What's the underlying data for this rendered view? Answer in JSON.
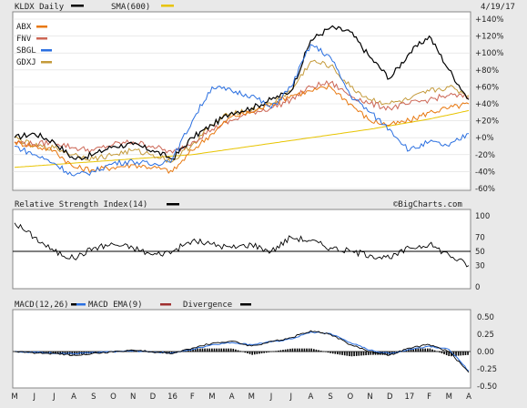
{
  "chart_data": {
    "type": "line",
    "date": "4/19/17",
    "watermark": "©BigCharts.com",
    "x_labels": [
      "M",
      "J",
      "J",
      "A",
      "S",
      "O",
      "N",
      "D",
      "16",
      "F",
      "M",
      "A",
      "M",
      "J",
      "J",
      "A",
      "S",
      "O",
      "N",
      "D",
      "17",
      "F",
      "M",
      "A"
    ],
    "main": {
      "ticker_label": "KLDX Daily",
      "sma_label": "SMA(600)",
      "legend": [
        {
          "name": "ABX",
          "color": "#e8780f"
        },
        {
          "name": "FNV",
          "color": "#cc6655"
        },
        {
          "name": "SBGL",
          "color": "#2a6fe0"
        },
        {
          "name": "GDXJ",
          "color": "#c49a3a"
        }
      ],
      "ylim": [
        -60,
        140
      ],
      "y_ticks": [
        "+140%",
        "+120%",
        "+100%",
        "+80%",
        "+60%",
        "+40%",
        "+20%",
        "+0%",
        "-20%",
        "-40%",
        "-60%"
      ],
      "y_tick_values": [
        140,
        120,
        100,
        80,
        60,
        40,
        20,
        0,
        -20,
        -40,
        -60
      ],
      "series": [
        {
          "name": "KLDX",
          "color": "#000000",
          "anchors": [
            [
              0,
              0
            ],
            [
              1,
              5
            ],
            [
              2,
              -5
            ],
            [
              3,
              -25
            ],
            [
              4,
              -20
            ],
            [
              5,
              -10
            ],
            [
              6,
              -8
            ],
            [
              7,
              -15
            ],
            [
              8,
              -25
            ],
            [
              9,
              0
            ],
            [
              10,
              15
            ],
            [
              11,
              30
            ],
            [
              12,
              35
            ],
            [
              13,
              45
            ],
            [
              14,
              55
            ],
            [
              15,
              115
            ],
            [
              16,
              130
            ],
            [
              17,
              125
            ],
            [
              18,
              95
            ],
            [
              19,
              70
            ],
            [
              20,
              100
            ],
            [
              21,
              120
            ],
            [
              22,
              80
            ],
            [
              23,
              45
            ]
          ]
        },
        {
          "name": "ABX",
          "color": "#e8780f",
          "anchors": [
            [
              0,
              -5
            ],
            [
              1,
              -10
            ],
            [
              2,
              -15
            ],
            [
              3,
              -35
            ],
            [
              4,
              -38
            ],
            [
              5,
              -35
            ],
            [
              6,
              -32
            ],
            [
              7,
              -35
            ],
            [
              8,
              -40
            ],
            [
              9,
              -15
            ],
            [
              10,
              5
            ],
            [
              11,
              25
            ],
            [
              12,
              30
            ],
            [
              13,
              40
            ],
            [
              14,
              50
            ],
            [
              15,
              55
            ],
            [
              16,
              60
            ],
            [
              17,
              40
            ],
            [
              18,
              20
            ],
            [
              19,
              15
            ],
            [
              20,
              20
            ],
            [
              21,
              30
            ],
            [
              22,
              35
            ],
            [
              23,
              40
            ]
          ]
        },
        {
          "name": "FNV",
          "color": "#cc6655",
          "anchors": [
            [
              0,
              -5
            ],
            [
              1,
              -8
            ],
            [
              2,
              -5
            ],
            [
              3,
              -12
            ],
            [
              4,
              -15
            ],
            [
              5,
              -8
            ],
            [
              6,
              -5
            ],
            [
              7,
              -10
            ],
            [
              8,
              -18
            ],
            [
              9,
              -5
            ],
            [
              10,
              10
            ],
            [
              11,
              20
            ],
            [
              12,
              30
            ],
            [
              13,
              35
            ],
            [
              14,
              45
            ],
            [
              15,
              60
            ],
            [
              16,
              65
            ],
            [
              17,
              50
            ],
            [
              18,
              40
            ],
            [
              19,
              35
            ],
            [
              20,
              40
            ],
            [
              21,
              45
            ],
            [
              22,
              50
            ],
            [
              23,
              48
            ]
          ]
        },
        {
          "name": "SBGL",
          "color": "#2a6fe0",
          "anchors": [
            [
              0,
              -10
            ],
            [
              1,
              -20
            ],
            [
              2,
              -30
            ],
            [
              3,
              -45
            ],
            [
              4,
              -40
            ],
            [
              5,
              -30
            ],
            [
              6,
              -28
            ],
            [
              7,
              -32
            ],
            [
              8,
              -25
            ],
            [
              9,
              20
            ],
            [
              10,
              60
            ],
            [
              11,
              55
            ],
            [
              12,
              50
            ],
            [
              13,
              35
            ],
            [
              14,
              60
            ],
            [
              15,
              110
            ],
            [
              16,
              95
            ],
            [
              17,
              50
            ],
            [
              18,
              30
            ],
            [
              19,
              10
            ],
            [
              20,
              -15
            ],
            [
              21,
              -5
            ],
            [
              22,
              -10
            ],
            [
              23,
              5
            ]
          ]
        },
        {
          "name": "GDXJ",
          "color": "#c49a3a",
          "anchors": [
            [
              0,
              0
            ],
            [
              1,
              -10
            ],
            [
              2,
              -12
            ],
            [
              3,
              -20
            ],
            [
              4,
              -25
            ],
            [
              5,
              -20
            ],
            [
              6,
              -15
            ],
            [
              7,
              -20
            ],
            [
              8,
              -28
            ],
            [
              9,
              -8
            ],
            [
              10,
              15
            ],
            [
              11,
              30
            ],
            [
              12,
              32
            ],
            [
              13,
              40
            ],
            [
              14,
              55
            ],
            [
              15,
              90
            ],
            [
              16,
              85
            ],
            [
              17,
              60
            ],
            [
              18,
              45
            ],
            [
              19,
              40
            ],
            [
              20,
              45
            ],
            [
              21,
              55
            ],
            [
              22,
              60
            ],
            [
              23,
              50
            ]
          ]
        },
        {
          "name": "SMA(600)",
          "color": "#e8c400",
          "anchors": [
            [
              0,
              -35
            ],
            [
              3,
              -30
            ],
            [
              6,
              -25
            ],
            [
              9,
              -20
            ],
            [
              12,
              -10
            ],
            [
              15,
              0
            ],
            [
              18,
              10
            ],
            [
              21,
              22
            ],
            [
              23,
              32
            ]
          ]
        }
      ]
    },
    "rsi": {
      "label": "Relative Strength Index(14)",
      "ylim": [
        0,
        100
      ],
      "y_ticks": [
        "100",
        "70",
        "50",
        "30",
        "0"
      ],
      "y_tick_values": [
        100,
        70,
        50,
        30,
        0
      ],
      "reference": 50,
      "anchors": [
        [
          0,
          90
        ],
        [
          1,
          70
        ],
        [
          2,
          50
        ],
        [
          3,
          40
        ],
        [
          4,
          55
        ],
        [
          5,
          60
        ],
        [
          6,
          55
        ],
        [
          7,
          45
        ],
        [
          8,
          50
        ],
        [
          9,
          65
        ],
        [
          10,
          60
        ],
        [
          11,
          55
        ],
        [
          12,
          60
        ],
        [
          13,
          50
        ],
        [
          14,
          70
        ],
        [
          15,
          65
        ],
        [
          16,
          55
        ],
        [
          17,
          50
        ],
        [
          18,
          45
        ],
        [
          19,
          40
        ],
        [
          20,
          55
        ],
        [
          21,
          60
        ],
        [
          22,
          45
        ],
        [
          23,
          30
        ]
      ]
    },
    "macd": {
      "labels": [
        "MACD(12,26)",
        "MACD EMA(9)",
        "Divergence"
      ],
      "colors": [
        "#000000",
        "#2a6fe0",
        "#a03030"
      ],
      "ylim": [
        -0.5,
        0.5
      ],
      "y_ticks": [
        "0.50",
        "0.25",
        "0.00",
        "-0.25",
        "-0.50"
      ],
      "y_tick_values": [
        0.5,
        0.25,
        0,
        -0.25,
        -0.5
      ],
      "macd_anchors": [
        [
          0,
          0
        ],
        [
          3,
          -0.05
        ],
        [
          6,
          0.02
        ],
        [
          8,
          -0.03
        ],
        [
          9,
          0.05
        ],
        [
          10,
          0.12
        ],
        [
          11,
          0.15
        ],
        [
          12,
          0.08
        ],
        [
          14,
          0.2
        ],
        [
          15,
          0.3
        ],
        [
          16,
          0.25
        ],
        [
          17,
          0.1
        ],
        [
          18,
          0
        ],
        [
          19,
          -0.05
        ],
        [
          20,
          0.05
        ],
        [
          21,
          0.1
        ],
        [
          22,
          0
        ],
        [
          23,
          -0.3
        ]
      ],
      "signal_anchors": [
        [
          0,
          0
        ],
        [
          3,
          -0.03
        ],
        [
          6,
          0.01
        ],
        [
          8,
          -0.02
        ],
        [
          9,
          0.03
        ],
        [
          10,
          0.1
        ],
        [
          11,
          0.13
        ],
        [
          12,
          0.1
        ],
        [
          14,
          0.18
        ],
        [
          15,
          0.28
        ],
        [
          16,
          0.26
        ],
        [
          17,
          0.13
        ],
        [
          18,
          0.02
        ],
        [
          19,
          -0.03
        ],
        [
          20,
          0.03
        ],
        [
          21,
          0.08
        ],
        [
          22,
          0.03
        ],
        [
          23,
          -0.28
        ]
      ]
    }
  }
}
